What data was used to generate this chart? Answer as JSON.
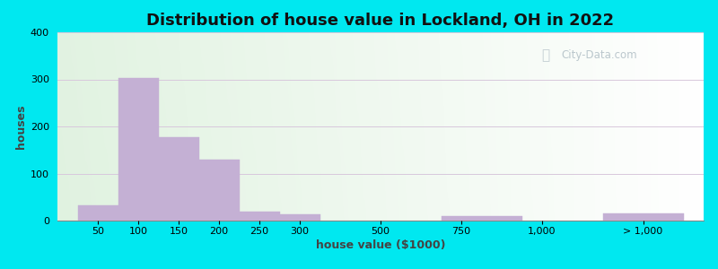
{
  "title": "Distribution of house value in Lockland, OH in 2022",
  "xlabel": "house value ($1000)",
  "ylabel": "houses",
  "bar_color": "#c4b0d4",
  "bar_edgecolor": "#c4b0d4",
  "background_outer": "#00e8f0",
  "ylim": [
    0,
    400
  ],
  "yticks": [
    0,
    100,
    200,
    300,
    400
  ],
  "grid_color": "#d8c8dc",
  "values": [
    33,
    302,
    178,
    130,
    20,
    13,
    0,
    10,
    0,
    15
  ],
  "bar_positions": [
    0,
    1,
    2,
    3,
    4,
    5,
    7,
    9,
    11,
    13
  ],
  "bar_widths": [
    1,
    1,
    1,
    1,
    1,
    1,
    1,
    2,
    1,
    2
  ],
  "x_tick_positions": [
    0.5,
    1.5,
    2.5,
    3.5,
    4.5,
    5.5,
    7.5,
    9.5,
    11.5,
    14
  ],
  "x_tick_labels": [
    "50",
    "100",
    "150",
    "200",
    "250",
    "300",
    "500",
    "750",
    "1,000",
    "> 1,000"
  ],
  "watermark_text": "City-Data.com",
  "watermark_color": "#b0bec5",
  "title_fontsize": 13,
  "label_fontsize": 9,
  "tick_fontsize": 8,
  "bg_gradient_colors": [
    "#e8f5e0",
    "#f5faf0",
    "#ffffff"
  ],
  "bg_gradient_top": "#d8eee0",
  "bg_gradient_right": "#eef8f5"
}
